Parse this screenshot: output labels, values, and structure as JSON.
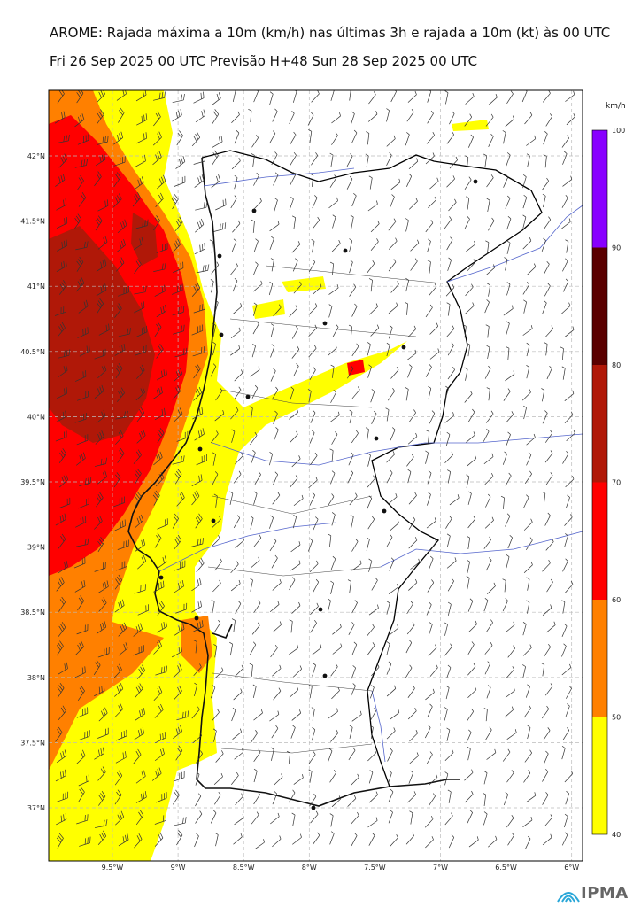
{
  "header": {
    "title": "AROME: Rajada máxima a 10m (km/h) nas últimas 3h e rajada a 10m (kt) às 00 UTC",
    "subtitle": "Fri 26 Sep 2025 00 UTC Previsão H+48 Sun 28 Sep 2025 00 UTC"
  },
  "axes": {
    "lat_labels": [
      "42°N",
      "41.5°N",
      "41°N",
      "40.5°N",
      "40°N",
      "39.5°N",
      "39°N",
      "38.5°N",
      "38°N",
      "37.5°N",
      "37°N"
    ],
    "lon_labels": [
      "9.5°W",
      "9°W",
      "8.5°W",
      "8°W",
      "7.5°W",
      "7°W",
      "6.5°W",
      "6°W"
    ],
    "lat_range": [
      36.6,
      42.5
    ],
    "lon_range": [
      -10.0,
      -6.0
    ]
  },
  "colorbar": {
    "unit": "km/h",
    "ticks": [
      "40",
      "50",
      "60",
      "70",
      "80",
      "90",
      "100"
    ],
    "colors": [
      "#ffff00",
      "#ff8000",
      "#ff0000",
      "#b01808",
      "#5a0000",
      "#8800ff"
    ]
  },
  "logo": {
    "text": "IPMA"
  },
  "colors": {
    "coast": "#111111",
    "border": "#000000",
    "river": "#5566cc",
    "grid": "#bbbbbb"
  }
}
